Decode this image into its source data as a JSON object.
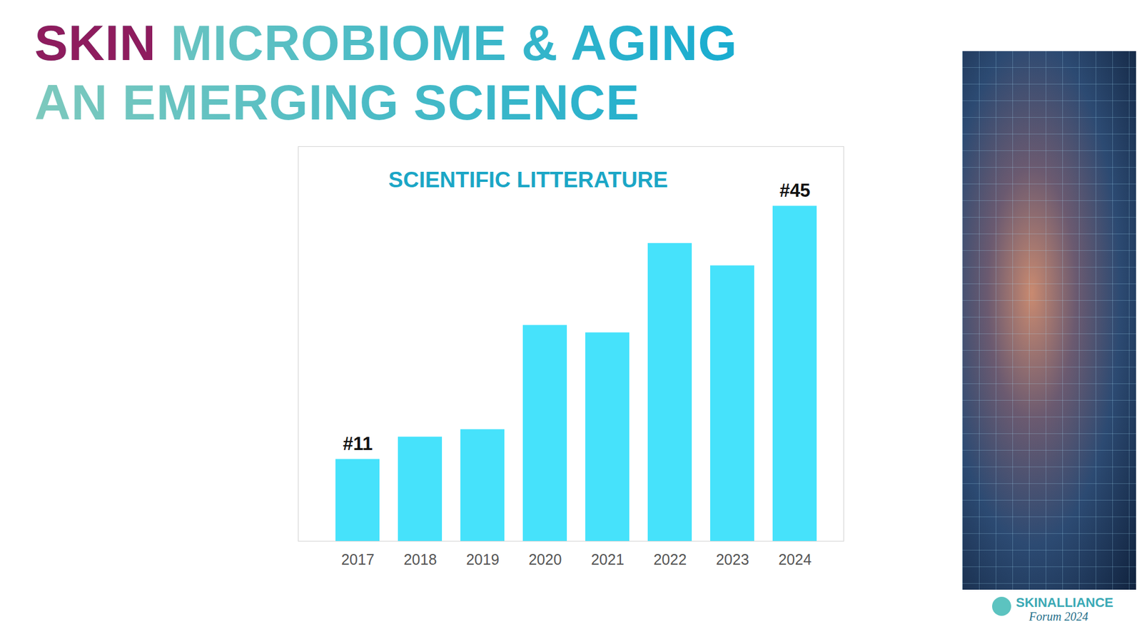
{
  "slide": {
    "title_lines": [
      "SKIN MICROBIOME & AGING",
      "AN EMERGING SCIENCE"
    ]
  },
  "chart_data": {
    "type": "bar",
    "title": "SCIENTIFIC LITTERATURE",
    "categories": [
      "2017",
      "2018",
      "2019",
      "2020",
      "2021",
      "2022",
      "2023",
      "2024"
    ],
    "values": [
      11,
      14,
      15,
      29,
      28,
      40,
      37,
      45
    ],
    "value_labels": [
      "#11",
      null,
      null,
      null,
      null,
      null,
      null,
      "#45"
    ],
    "data_labels": true,
    "color": "#46e2fb",
    "ylim": [
      0,
      53
    ],
    "tick_labels": "x",
    "grid": false
  },
  "footer": {
    "logo": "SKINALLIANCE",
    "event": "Forum 2024"
  }
}
